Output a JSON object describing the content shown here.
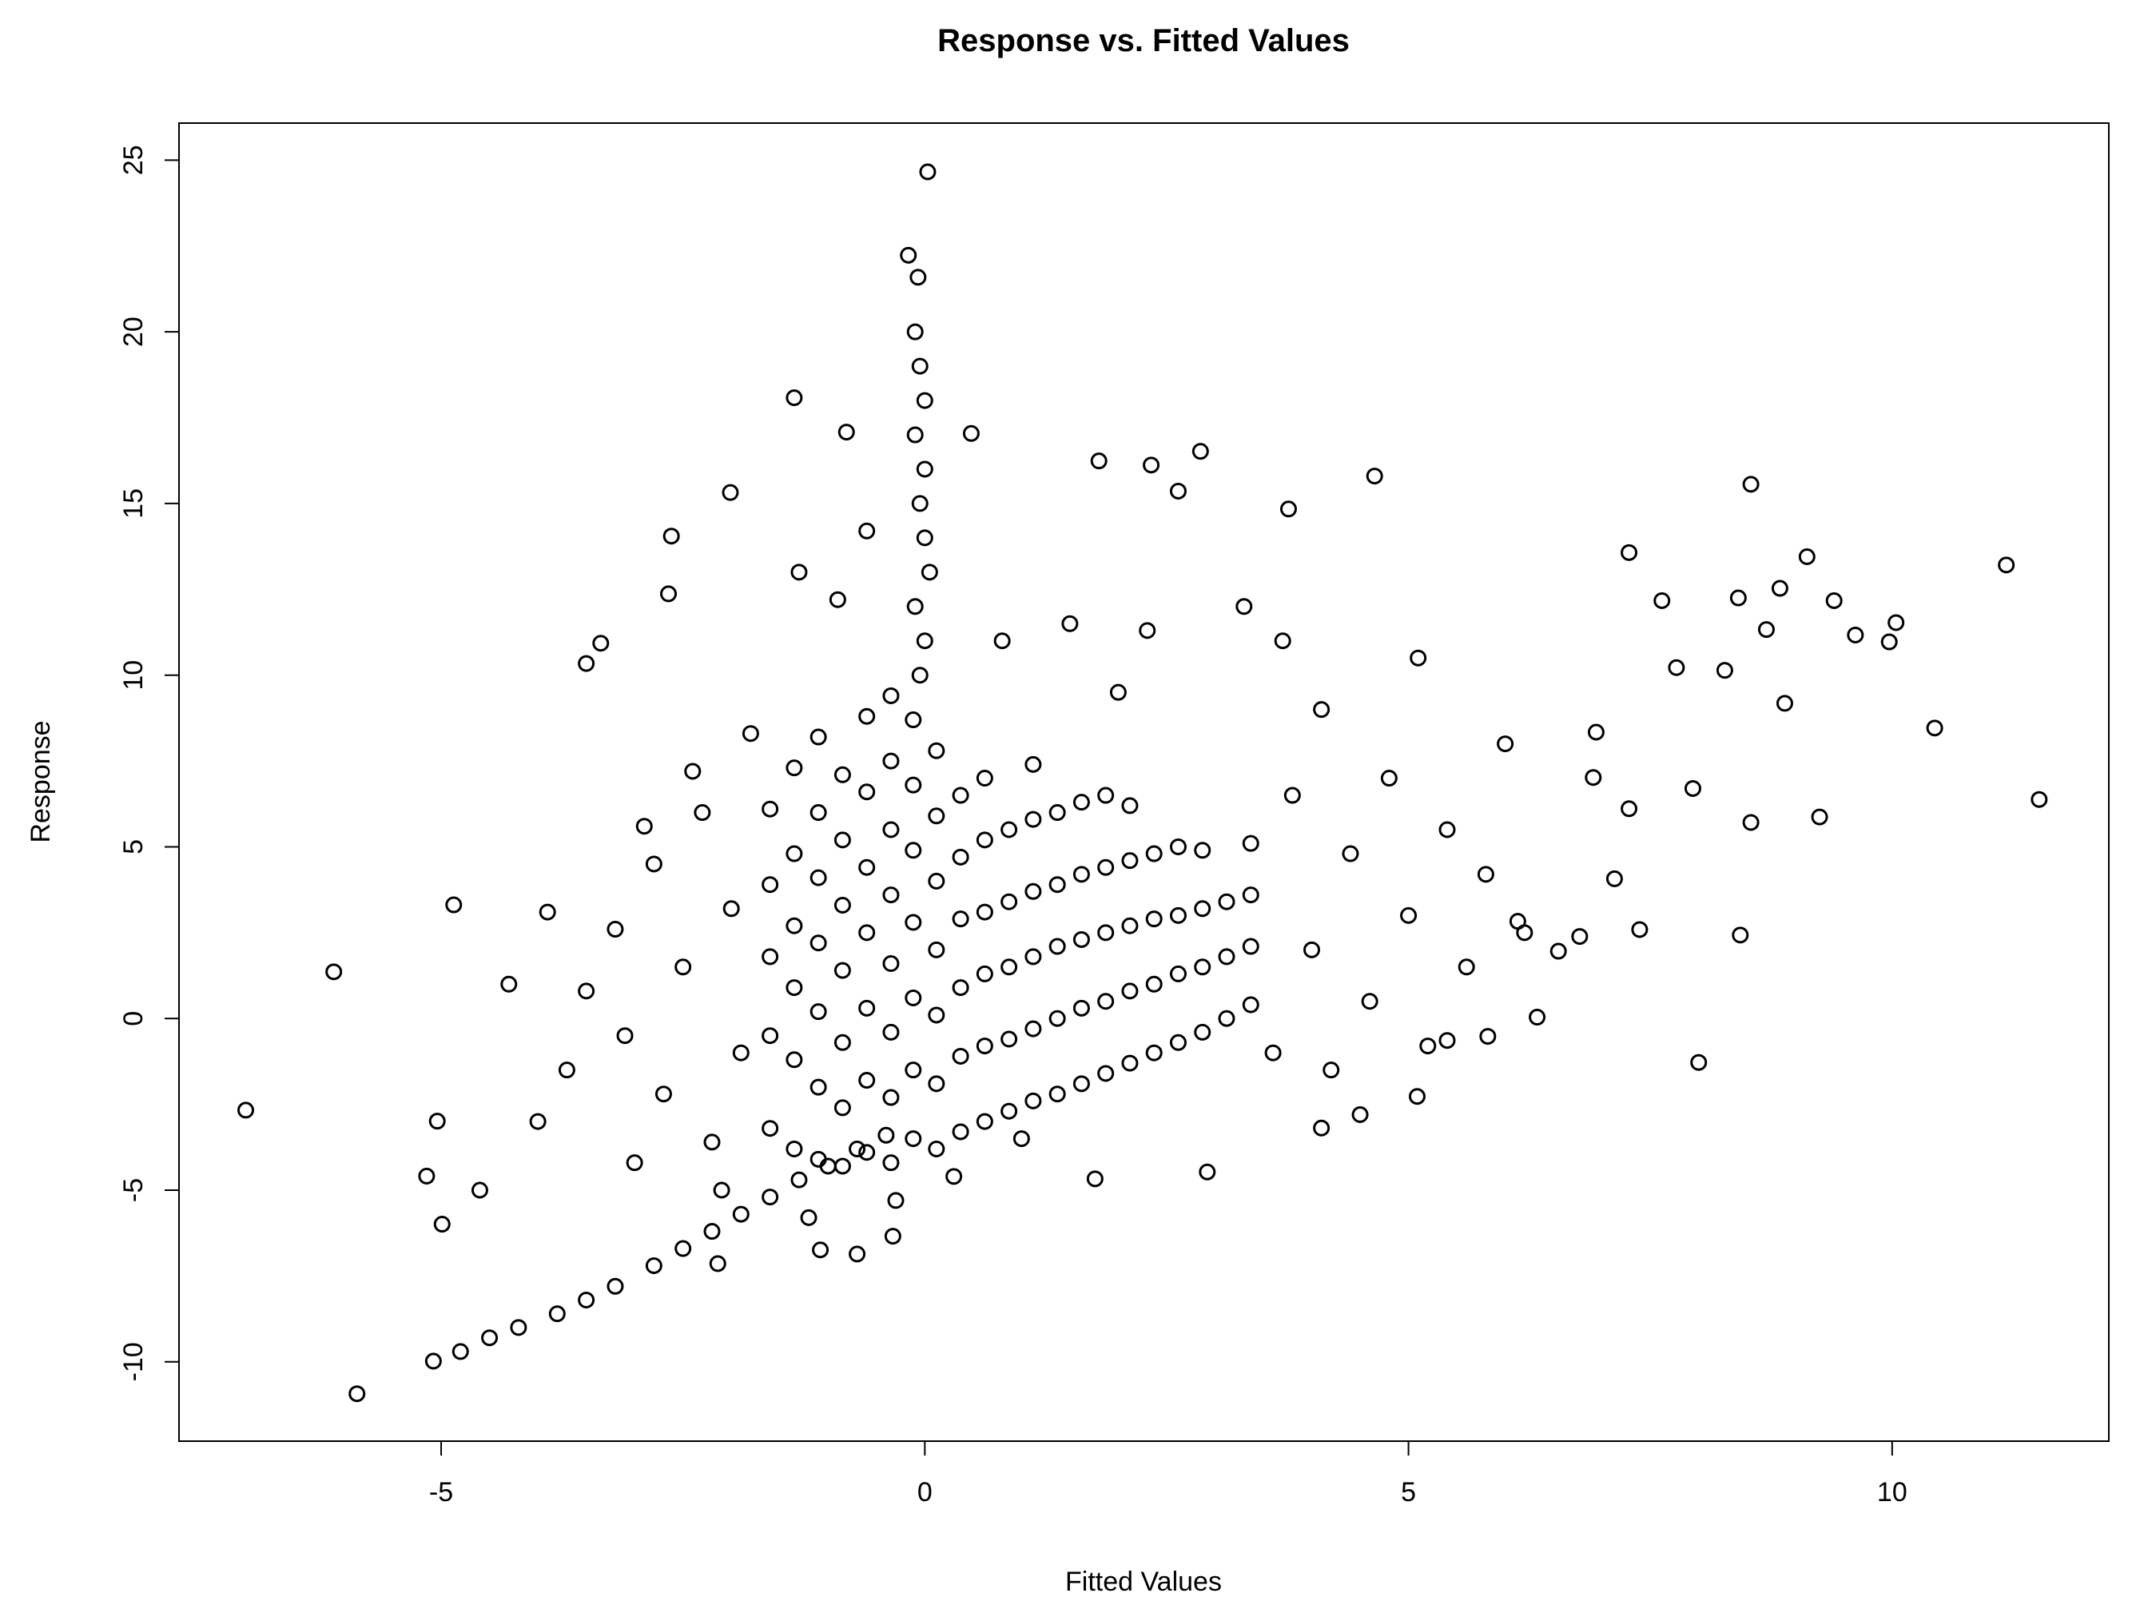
{
  "chart_data": {
    "type": "scatter",
    "title": "Response vs. Fitted Values",
    "x_label": "Fitted Values",
    "y_label": "Response",
    "color": "#000000",
    "xlim": [
      -7.71,
      12.24
    ],
    "ylim": [
      -12.31,
      26.08
    ],
    "xticks": [
      -5,
      0,
      5,
      10
    ],
    "yticks": [
      -10,
      -5,
      0,
      5,
      10,
      15,
      20,
      25
    ],
    "x": [
      -7.02,
      -6.11,
      -5.87,
      11.52,
      11.18,
      10.44,
      10.04,
      9.97,
      9.62,
      9.4,
      9.12,
      9.25,
      8.89,
      8.84,
      8.7,
      8.54,
      8.41,
      8.54,
      8.43,
      8.27,
      8.0,
      7.94,
      7.77,
      7.62,
      7.28,
      7.28,
      7.39,
      7.13,
      6.94,
      6.91,
      6.77,
      6.55,
      6.33,
      6.13,
      4.65,
      3.76,
      2.85,
      1.8,
      2.34,
      2.62,
      0.48,
      0.03,
      -0.17,
      -0.07,
      -1.35,
      -0.81,
      -2.01,
      -2.62,
      -2.65,
      -3.35,
      -3.5,
      -4.87,
      -5.04,
      -5.15,
      -4.99,
      -5.08,
      5.09,
      4.1,
      2.92,
      1.76,
      -0.7,
      -0.33,
      -1.08,
      -2.14,
      5.4,
      5.82,
      -4.8,
      -4.5,
      -4.2,
      -3.8,
      -3.5,
      -3.2,
      -2.8,
      -2.5,
      -2.2,
      -1.9,
      -1.6,
      -1.3,
      -1.0,
      -0.7,
      -0.4,
      -0.1,
      -0.05,
      0,
      -0.1,
      0,
      -0.05,
      0,
      0.05,
      -0.1,
      0,
      -0.05,
      -1.6,
      -1.6,
      -1.6,
      -1.6,
      -1.6,
      -1.35,
      -1.35,
      -1.35,
      -1.35,
      -1.35,
      -1.35,
      -1.1,
      -1.1,
      -1.1,
      -1.1,
      -1.1,
      -1.1,
      -1.1,
      -0.85,
      -0.85,
      -0.85,
      -0.85,
      -0.85,
      -0.85,
      -0.85,
      -0.6,
      -0.6,
      -0.6,
      -0.6,
      -0.6,
      -0.6,
      -0.6,
      -0.35,
      -0.35,
      -0.35,
      -0.35,
      -0.35,
      -0.35,
      -0.35,
      -0.35,
      -0.12,
      -0.12,
      -0.12,
      -0.12,
      -0.12,
      -0.12,
      -0.12,
      0.12,
      0.12,
      0.12,
      0.12,
      0.12,
      0.12,
      0.12,
      0.37,
      0.37,
      0.37,
      0.37,
      0.37,
      0.37,
      0.62,
      0.62,
      0.62,
      0.62,
      0.62,
      0.62,
      0.87,
      0.87,
      0.87,
      0.87,
      0.87,
      1.12,
      1.12,
      1.12,
      1.12,
      1.12,
      1.12,
      1.37,
      1.37,
      1.37,
      1.37,
      1.37,
      1.62,
      1.62,
      1.62,
      1.62,
      1.62,
      1.87,
      1.87,
      1.87,
      1.87,
      1.87,
      2.12,
      2.12,
      2.12,
      2.12,
      2.12,
      2.37,
      2.37,
      2.37,
      2.37,
      2.62,
      2.62,
      2.62,
      2.62,
      2.87,
      2.87,
      2.87,
      2.87,
      3.12,
      3.12,
      3.12,
      3.37,
      3.37,
      3.37,
      3.37,
      -4.0,
      -3.7,
      -3.5,
      -3.2,
      -3.0,
      -2.8,
      -2.7,
      -2.5,
      -2.3,
      -2.2,
      -2.0,
      -1.9,
      -1.8,
      -2.4,
      -3.1,
      -4.3,
      -4.6,
      -3.9,
      -2.9,
      -2.1,
      3.6,
      3.8,
      4.0,
      4.2,
      4.4,
      4.6,
      4.8,
      5.0,
      5.2,
      5.4,
      5.6,
      5.8,
      6.0,
      6.2,
      4.1,
      3.7,
      4.5,
      5.1,
      3.3,
      2.3,
      1.5,
      0.8,
      -0.6,
      -1.3,
      -0.9,
      1.0,
      0.3,
      -0.3,
      -1.2,
      2.0
    ],
    "values": [
      -2.67,
      1.36,
      -10.93,
      6.38,
      13.21,
      8.46,
      11.53,
      10.97,
      11.17,
      12.17,
      13.45,
      5.87,
      9.18,
      12.53,
      11.33,
      15.56,
      12.25,
      5.71,
      2.43,
      10.14,
      -1.28,
      6.7,
      10.22,
      12.17,
      13.57,
      6.11,
      2.59,
      4.07,
      8.34,
      7.02,
      2.39,
      1.96,
      0.04,
      2.83,
      15.8,
      14.84,
      16.52,
      16.24,
      16.12,
      15.36,
      17.04,
      24.66,
      22.23,
      21.59,
      18.08,
      17.08,
      15.32,
      14.05,
      12.37,
      10.93,
      10.34,
      3.31,
      -2.99,
      -4.59,
      -5.99,
      -9.98,
      -2.27,
      -3.19,
      -4.47,
      -4.67,
      -6.86,
      -6.34,
      -6.74,
      -7.14,
      -0.64,
      -0.52,
      -9.7,
      -9.3,
      -9.0,
      -8.6,
      -8.2,
      -7.8,
      -7.2,
      -6.7,
      -6.2,
      -5.7,
      -5.2,
      -4.7,
      -4.3,
      -3.8,
      -3.4,
      20,
      19,
      18,
      17,
      16,
      15,
      14,
      13,
      12,
      11,
      10,
      -3.2,
      -0.5,
      1.8,
      3.9,
      6.1,
      -3.8,
      -1.2,
      0.9,
      2.7,
      4.8,
      7.3,
      -4.1,
      -2.0,
      0.2,
      2.2,
      4.1,
      6.0,
      8.2,
      -4.3,
      -2.6,
      -0.7,
      1.4,
      3.3,
      5.2,
      7.1,
      -3.9,
      -1.8,
      0.3,
      2.5,
      4.4,
      6.6,
      8.8,
      -4.2,
      -2.3,
      -0.4,
      1.6,
      3.6,
      5.5,
      7.5,
      9.4,
      -3.5,
      -1.5,
      0.6,
      2.8,
      4.9,
      6.8,
      8.7,
      -3.8,
      -1.9,
      0.1,
      2.0,
      4.0,
      5.9,
      7.8,
      -3.3,
      -1.1,
      0.9,
      2.9,
      4.7,
      6.5,
      -3.0,
      -0.8,
      1.3,
      3.1,
      5.2,
      7.0,
      -2.7,
      -0.6,
      1.5,
      3.4,
      5.5,
      -2.4,
      -0.3,
      1.8,
      3.7,
      5.8,
      7.4,
      -2.2,
      0.0,
      2.1,
      3.9,
      6.0,
      -1.9,
      0.3,
      2.3,
      4.2,
      6.3,
      -1.6,
      0.5,
      2.5,
      4.4,
      6.5,
      -1.3,
      0.8,
      2.7,
      4.6,
      6.2,
      -1.0,
      1.0,
      2.9,
      4.8,
      -0.7,
      1.3,
      3.0,
      5.0,
      -0.4,
      1.5,
      3.2,
      4.9,
      0.0,
      1.8,
      3.4,
      0.4,
      2.1,
      3.6,
      5.1,
      -3.0,
      -1.5,
      0.8,
      2.6,
      -4.2,
      4.5,
      -2.2,
      1.5,
      6.0,
      -3.6,
      3.2,
      -1.0,
      8.3,
      7.2,
      -0.5,
      1.0,
      -5.0,
      3.1,
      5.6,
      -5.0,
      -1.0,
      6.5,
      2.0,
      -1.5,
      4.8,
      0.5,
      7.0,
      3.0,
      -0.8,
      5.5,
      1.5,
      4.2,
      8.0,
      2.5,
      9.0,
      11.0,
      -2.8,
      10.5,
      12.0,
      11.3,
      11.5,
      11.0,
      14.2,
      13.0,
      12.2,
      -3.5,
      -4.6,
      -5.3,
      -5.8,
      9.5
    ]
  }
}
